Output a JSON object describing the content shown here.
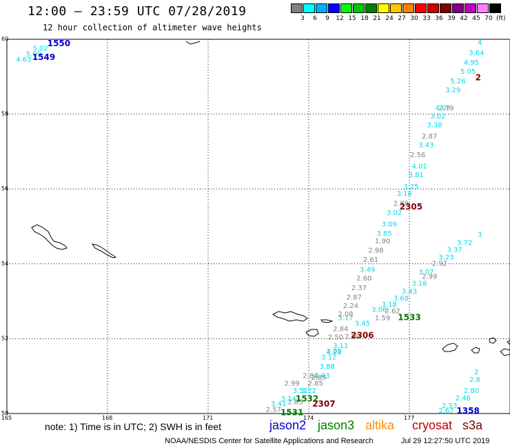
{
  "header": {
    "title": "12:00 – 23:59 UTC 07/28/2019",
    "subtitle": "12 hour collection of altimeter wave heights"
  },
  "legend": {
    "unit": "(ft)",
    "items": [
      {
        "label": "3",
        "color": "#808080"
      },
      {
        "label": "6",
        "color": "#00ffff"
      },
      {
        "label": "9",
        "color": "#00b0ff"
      },
      {
        "label": "12",
        "color": "#0000ff"
      },
      {
        "label": "15",
        "color": "#00ff00"
      },
      {
        "label": "18",
        "color": "#00c800"
      },
      {
        "label": "21",
        "color": "#008000"
      },
      {
        "label": "24",
        "color": "#ffff00"
      },
      {
        "label": "27",
        "color": "#ffc800"
      },
      {
        "label": "30",
        "color": "#ff8000"
      },
      {
        "label": "33",
        "color": "#ff0000"
      },
      {
        "label": "36",
        "color": "#c80000"
      },
      {
        "label": "39",
        "color": "#800000"
      },
      {
        "label": "42",
        "color": "#800080"
      },
      {
        "label": "45",
        "color": "#c000c0"
      },
      {
        "label": "70",
        "color": "#ff80ff"
      },
      {
        "label": "",
        "color": "#000000"
      }
    ]
  },
  "axes": {
    "lat_labels": [
      "60",
      "58",
      "56",
      "54",
      "52",
      "50"
    ],
    "lon_labels": [
      "165",
      "168",
      "171",
      "174",
      "177"
    ]
  },
  "tracks": [
    {
      "id": "jason2-1549",
      "color": "#00d8e8",
      "points": [
        {
          "lon": 165.5,
          "lat": 59.4,
          "v": "4.63"
        },
        {
          "lon": 165.8,
          "lat": 59.55,
          "v": "5.09"
        },
        {
          "lon": 166.0,
          "lat": 59.7,
          "v": "5.02"
        }
      ]
    },
    {
      "id": "mixed-east",
      "color": "#00d8e8",
      "points": [
        {
          "lon": 179.1,
          "lat": 59.85,
          "v": "4"
        },
        {
          "lon": 179.0,
          "lat": 59.58,
          "v": "3.64"
        },
        {
          "lon": 178.85,
          "lat": 59.32,
          "v": "4.95"
        },
        {
          "lon": 178.75,
          "lat": 59.08,
          "v": "5.05"
        },
        {
          "lon": 178.45,
          "lat": 58.82,
          "v": "5.26"
        },
        {
          "lon": 178.3,
          "lat": 58.58,
          "v": "3.29"
        },
        {
          "lon": 178.0,
          "lat": 58.1,
          "v": "4.05"
        },
        {
          "lon": 177.85,
          "lat": 57.88,
          "v": "3.02"
        },
        {
          "lon": 177.75,
          "lat": 57.65,
          "v": "3.38"
        },
        {
          "lon": 177.5,
          "lat": 57.12,
          "v": "3.43"
        },
        {
          "lon": 177.3,
          "lat": 56.55,
          "v": "4.01"
        },
        {
          "lon": 177.2,
          "lat": 56.32,
          "v": "3.81"
        },
        {
          "lon": 177.05,
          "lat": 56.0,
          "v": "3.25"
        },
        {
          "lon": 176.85,
          "lat": 55.82,
          "v": "3.18"
        },
        {
          "lon": 176.55,
          "lat": 55.3,
          "v": "3.02"
        },
        {
          "lon": 176.4,
          "lat": 55.0,
          "v": "3.09"
        },
        {
          "lon": 176.25,
          "lat": 54.75,
          "v": "3.85"
        },
        {
          "lon": 175.75,
          "lat": 53.78,
          "v": "3.49"
        },
        {
          "lon": 175.1,
          "lat": 52.5,
          "v": "3.17"
        },
        {
          "lon": 174.75,
          "lat": 51.58,
          "v": "4.29"
        },
        {
          "lon": 174.55,
          "lat": 51.2,
          "v": "3.88"
        },
        {
          "lon": 174.4,
          "lat": 50.95,
          "v": "4.03"
        },
        {
          "lon": 174.0,
          "lat": 50.55,
          "v": "3.22"
        },
        {
          "lon": 173.75,
          "lat": 50.55,
          "v": "3.51"
        },
        {
          "lon": 173.4,
          "lat": 50.33,
          "v": "3.14"
        },
        {
          "lon": 173.1,
          "lat": 50.2,
          "v": "3.41"
        }
      ]
    },
    {
      "id": "altika-gray",
      "color": "#808080",
      "points": [
        {
          "lon": 178.1,
          "lat": 58.1,
          "v": "2.79"
        },
        {
          "lon": 177.6,
          "lat": 57.35,
          "v": "2.87"
        },
        {
          "lon": 177.25,
          "lat": 56.85,
          "v": "2.56"
        },
        {
          "lon": 176.75,
          "lat": 55.55,
          "v": "2.89"
        },
        {
          "lon": 176.2,
          "lat": 54.55,
          "v": "1.90"
        },
        {
          "lon": 176.0,
          "lat": 54.3,
          "v": "2.98"
        },
        {
          "lon": 175.85,
          "lat": 54.05,
          "v": "2.61"
        },
        {
          "lon": 175.65,
          "lat": 53.55,
          "v": "2.60"
        },
        {
          "lon": 175.5,
          "lat": 53.3,
          "v": "2.37"
        },
        {
          "lon": 175.35,
          "lat": 53.05,
          "v": "2.87"
        },
        {
          "lon": 175.25,
          "lat": 52.82,
          "v": "2.24"
        },
        {
          "lon": 175.1,
          "lat": 52.6,
          "v": "2.08"
        },
        {
          "lon": 174.95,
          "lat": 52.2,
          "v": "2.84"
        },
        {
          "lon": 174.8,
          "lat": 51.98,
          "v": "2.50"
        },
        {
          "lon": 174.3,
          "lat": 50.9,
          "v": "2.85"
        },
        {
          "lon": 174.2,
          "lat": 50.75,
          "v": "2.85"
        },
        {
          "lon": 174.05,
          "lat": 50.95,
          "v": "2.81"
        },
        {
          "lon": 173.5,
          "lat": 50.75,
          "v": "2.99"
        },
        {
          "lon": 173.6,
          "lat": 50.25,
          "v": "2.85"
        },
        {
          "lon": 172.95,
          "lat": 50.05,
          "v": "2.57"
        }
      ]
    },
    {
      "id": "cryosat-diagonal",
      "color": "#00d8e8",
      "points": [
        {
          "lon": 179.1,
          "lat": 54.72,
          "v": "3"
        },
        {
          "lon": 178.65,
          "lat": 54.5,
          "v": "3.72"
        },
        {
          "lon": 178.35,
          "lat": 54.32,
          "v": "3.37"
        },
        {
          "lon": 178.1,
          "lat": 54.12,
          "v": "3.23"
        },
        {
          "lon": 177.5,
          "lat": 53.72,
          "v": "3.07"
        },
        {
          "lon": 177.3,
          "lat": 53.42,
          "v": "3.16"
        },
        {
          "lon": 177.0,
          "lat": 53.2,
          "v": "3.43"
        },
        {
          "lon": 176.75,
          "lat": 53.02,
          "v": "3.68"
        },
        {
          "lon": 176.4,
          "lat": 52.85,
          "v": "3.18"
        },
        {
          "lon": 176.1,
          "lat": 52.72,
          "v": "3.06"
        },
        {
          "lon": 175.6,
          "lat": 52.35,
          "v": "3.45"
        },
        {
          "lon": 174.95,
          "lat": 51.75,
          "v": "3.11"
        },
        {
          "lon": 174.75,
          "lat": 51.6,
          "v": "3.02"
        },
        {
          "lon": 174.6,
          "lat": 51.45,
          "v": "3.12"
        }
      ]
    },
    {
      "id": "gray-diagonal",
      "color": "#808080",
      "points": [
        {
          "lon": 177.9,
          "lat": 53.95,
          "v": "2.92"
        },
        {
          "lon": 177.6,
          "lat": 53.6,
          "v": "2.99"
        },
        {
          "lon": 176.5,
          "lat": 52.68,
          "v": "2.62"
        },
        {
          "lon": 176.2,
          "lat": 52.5,
          "v": "1.59"
        },
        {
          "lon": 175.3,
          "lat": 52.0,
          "v": "2.50"
        }
      ]
    },
    {
      "id": "southeast",
      "color": "#00d8e8",
      "points": [
        {
          "lon": 179.0,
          "lat": 51.05,
          "v": "2"
        },
        {
          "lon": 178.95,
          "lat": 50.85,
          "v": "2.8"
        },
        {
          "lon": 178.85,
          "lat": 50.55,
          "v": "2.80"
        },
        {
          "lon": 178.6,
          "lat": 50.35,
          "v": "2.46"
        },
        {
          "lon": 178.2,
          "lat": 50.15,
          "v": "2.53"
        },
        {
          "lon": 178.1,
          "lat": 50.02,
          "v": "2.67"
        }
      ]
    }
  ],
  "passes": [
    {
      "label": "1550",
      "color": "#0000c8",
      "lon": 166.55,
      "lat": 59.82
    },
    {
      "label": "1549",
      "color": "#0000c8",
      "lon": 166.1,
      "lat": 59.45
    },
    {
      "label": "2",
      "color": "#800000",
      "lon": 179.05,
      "lat": 58.9
    },
    {
      "label": "2305",
      "color": "#800000",
      "lon": 177.05,
      "lat": 55.45
    },
    {
      "label": "1533",
      "color": "#007800",
      "lon": 177.0,
      "lat": 52.5
    },
    {
      "label": "2306",
      "color": "#800000",
      "lon": 175.6,
      "lat": 52.02
    },
    {
      "label": "1532",
      "color": "#007800",
      "lon": 173.95,
      "lat": 50.32
    },
    {
      "label": "2307",
      "color": "#800000",
      "lon": 174.45,
      "lat": 50.18
    },
    {
      "label": "1531",
      "color": "#007800",
      "lon": 173.5,
      "lat": 49.95
    },
    {
      "label": "1358",
      "color": "#0000c8",
      "lon": 178.75,
      "lat": 50.0
    }
  ],
  "footer": {
    "note": "note: 1) Time is in UTC; 2) SWH is in feet",
    "satellites": [
      {
        "label": "jason2",
        "color": "#0000c8"
      },
      {
        "label": "jason3",
        "color": "#008000"
      },
      {
        "label": "altika",
        "color": "#ff8c00"
      },
      {
        "label": "cryosat",
        "color": "#c00000"
      },
      {
        "label": "s3a",
        "color": "#800000"
      }
    ],
    "credit": "NOAA/NESDIS Center for Satellite Applications and Research",
    "timestamp": "Jul 29 12:27:50 UTC 2019"
  }
}
